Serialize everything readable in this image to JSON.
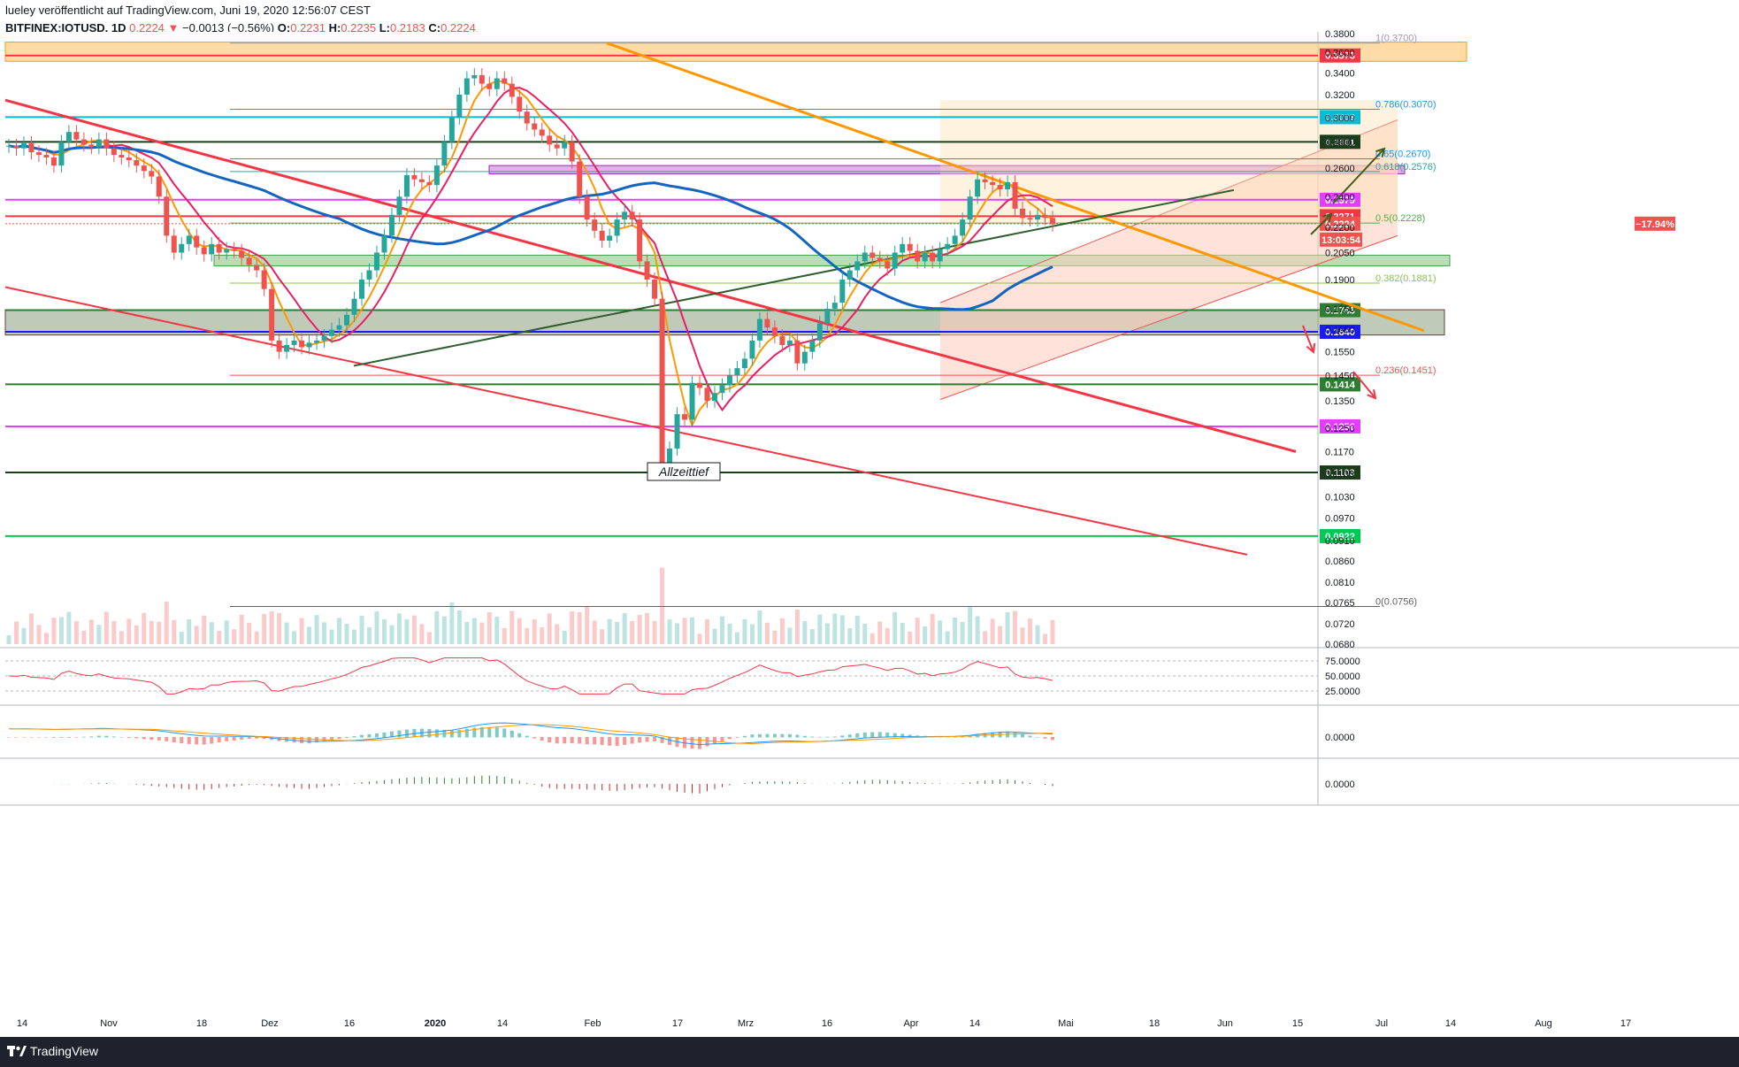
{
  "header": {
    "publisher_line": "lueley veröffentlicht auf TradingView.com, Juni 19, 2020 12:56:07 CEST",
    "symbol": "BITFINEX:IOTUSD, 1D",
    "last": "0.2224",
    "arrow": "▼",
    "change": "−0.0013 (−0.56%)",
    "o_label": "O:",
    "o_value": "0.2231",
    "h_label": "H:",
    "h_value": "0.2235",
    "l_label": "L:",
    "l_value": "0.2183",
    "c_label": "C:",
    "c_value": "0.2224"
  },
  "footer": {
    "brand": "TradingView"
  },
  "annotation": {
    "label": "Allzeittief"
  },
  "chart_data": {
    "type": "candlestick",
    "symbol": "BITFINEX:IOTUSD",
    "timeframe": "1D",
    "y_axis": {
      "min": 0.068,
      "max": 0.38,
      "scale": "log",
      "ticks": [
        "0.3800",
        "0.3600",
        "0.3400",
        "0.3200",
        "0.3000",
        "0.2800",
        "0.2600",
        "0.2400",
        "0.2200",
        "0.2050",
        "0.1900",
        "0.1750",
        "0.1650",
        "0.1550",
        "0.1450",
        "0.1350",
        "0.1250",
        "0.1170",
        "0.1100",
        "0.1030",
        "0.0970",
        "0.0910",
        "0.0860",
        "0.0810",
        "0.0765",
        "0.0720",
        "0.0680"
      ]
    },
    "x_axis": {
      "ticks": [
        "14",
        "Nov",
        "18",
        "Dez",
        "16",
        "2020",
        "14",
        "Feb",
        "17",
        "Mrz",
        "16",
        "Apr",
        "14",
        "Mai",
        "18",
        "Jun",
        "15",
        "Jul",
        "14",
        "Aug",
        "17"
      ]
    },
    "price_levels": [
      {
        "value": "0.3573",
        "color": "#f23645"
      },
      {
        "value": "0.3003",
        "color": "#00bcd4"
      },
      {
        "value": "0.2801",
        "color": "#1b3d1b"
      },
      {
        "value": "0.2379",
        "color": "#e040fb"
      },
      {
        "value": "0.2271",
        "color": "#f23645"
      },
      {
        "value": "0.2224",
        "color": "#ef5350"
      },
      {
        "value": "0.1743",
        "color": "#2e7d32"
      },
      {
        "value": "0.1640",
        "color": "#1a1aff"
      },
      {
        "value": "0.1414",
        "color": "#2e7d32"
      },
      {
        "value": "0.1256",
        "color": "#e040fb"
      },
      {
        "value": "0.1103",
        "color": "#1b3d1b"
      },
      {
        "value": "0.0922",
        "color": "#00c853"
      }
    ],
    "last_change": "−17.94%",
    "countdown": "13:03:54",
    "fibonacci": [
      {
        "label": "1(0.3700)",
        "value": 0.37,
        "color": "#9e9e9e"
      },
      {
        "label": "0.786(0.3070)",
        "value": 0.307,
        "color": "#2196f3"
      },
      {
        "label": "0.65(0.2670)",
        "value": 0.267,
        "color": "#2196f3"
      },
      {
        "label": "0.618(0.2576)",
        "value": 0.2576,
        "color": "#26a69a"
      },
      {
        "label": "0.5(0.2228)",
        "value": 0.2228,
        "color": "#4caf50"
      },
      {
        "label": "0.382(0.1881)",
        "value": 0.1881,
        "color": "#8bc34a"
      },
      {
        "label": "0.236(0.1451)",
        "value": 0.1451,
        "color": "#ef5350"
      },
      {
        "label": "0(0.0756)",
        "value": 0.0756,
        "color": "#616161"
      }
    ],
    "rsi": {
      "ticks": [
        "75.0000",
        "50.0000",
        "25.0000"
      ]
    },
    "macd": {
      "ticks": [
        "0.0000"
      ]
    },
    "osc3": {
      "ticks": [
        "0.0000"
      ]
    },
    "price_series": [
      0.277,
      0.275,
      0.279,
      0.272,
      0.27,
      0.268,
      0.262,
      0.28,
      0.288,
      0.282,
      0.278,
      0.276,
      0.282,
      0.275,
      0.27,
      0.268,
      0.266,
      0.262,
      0.258,
      0.254,
      0.24,
      0.215,
      0.205,
      0.21,
      0.215,
      0.208,
      0.204,
      0.21,
      0.205,
      0.207,
      0.206,
      0.202,
      0.198,
      0.195,
      0.185,
      0.16,
      0.155,
      0.158,
      0.16,
      0.157,
      0.159,
      0.16,
      0.162,
      0.165,
      0.167,
      0.172,
      0.18,
      0.19,
      0.195,
      0.205,
      0.215,
      0.228,
      0.24,
      0.255,
      0.252,
      0.25,
      0.248,
      0.262,
      0.28,
      0.3,
      0.32,
      0.335,
      0.338,
      0.33,
      0.325,
      0.335,
      0.33,
      0.318,
      0.305,
      0.295,
      0.29,
      0.285,
      0.278,
      0.275,
      0.28,
      0.265,
      0.24,
      0.225,
      0.218,
      0.212,
      0.215,
      0.225,
      0.23,
      0.225,
      0.2,
      0.19,
      0.18,
      0.112,
      0.118,
      0.13,
      0.128,
      0.142,
      0.14,
      0.135,
      0.138,
      0.141,
      0.145,
      0.148,
      0.152,
      0.16,
      0.17,
      0.166,
      0.162,
      0.158,
      0.16,
      0.15,
      0.155,
      0.16,
      0.168,
      0.175,
      0.178,
      0.19,
      0.195,
      0.2,
      0.205,
      0.202,
      0.2,
      0.196,
      0.205,
      0.21,
      0.206,
      0.2,
      0.205,
      0.2,
      0.207,
      0.21,
      0.215,
      0.225,
      0.24,
      0.252,
      0.25,
      0.248,
      0.245,
      0.25,
      0.232,
      0.226,
      0.225,
      0.228,
      0.226,
      0.222
    ]
  }
}
